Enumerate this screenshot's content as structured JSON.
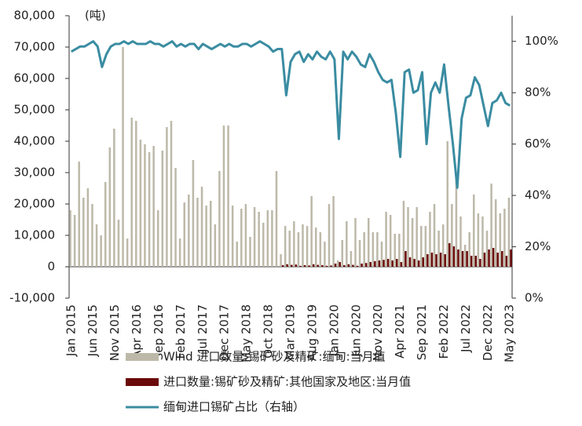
{
  "chart_data": {
    "type": "bar_line",
    "unit_label": "(吨)",
    "categories": [
      "Jan 2015",
      null,
      null,
      null,
      null,
      "Jun 2015",
      null,
      null,
      null,
      null,
      "Nov 2015",
      null,
      null,
      null,
      null,
      "Apr 2016",
      null,
      null,
      null,
      null,
      "Sep 2016",
      null,
      null,
      null,
      null,
      "Feb 2017",
      null,
      null,
      null,
      null,
      "Jul 2017",
      null,
      null,
      null,
      null,
      "Dec 2017",
      null,
      null,
      null,
      null,
      "May 2018",
      null,
      null,
      null,
      null,
      "Oct 2018",
      null,
      null,
      null,
      null,
      "Mar 2019",
      null,
      null,
      null,
      null,
      "Aug 2019",
      null,
      null,
      null,
      null,
      "Jan 2020",
      null,
      null,
      null,
      null,
      "Jun 2020",
      null,
      null,
      null,
      null,
      "Nov 2020",
      null,
      null,
      null,
      null,
      "Apr 2021",
      null,
      null,
      null,
      null,
      "Sep 2021",
      null,
      null,
      null,
      null,
      "Feb 2022",
      null,
      null,
      null,
      null,
      "Jul 2022",
      null,
      null,
      null,
      null,
      "Dec 2022",
      null,
      null,
      null,
      null,
      "May 2023"
    ],
    "series": [
      {
        "name": "Wind 进口数量:锡矿砂及精矿:缅甸:当月值",
        "color": "#bdb9a9",
        "kind": "bar",
        "values": [
          18000,
          16500,
          33500,
          22000,
          25000,
          20000,
          13500,
          10000,
          27000,
          38000,
          44000,
          15000,
          70000,
          9000,
          47500,
          46500,
          40500,
          39000,
          36500,
          38500,
          18000,
          37000,
          44500,
          46500,
          31500,
          9000,
          20500,
          23000,
          34000,
          22000,
          25500,
          19500,
          21000,
          13500,
          30500,
          45000,
          45000,
          19500,
          8000,
          18500,
          20000,
          9500,
          19000,
          17500,
          14000,
          18000,
          18000,
          30500,
          4000,
          13000,
          11500,
          14500,
          11000,
          13500,
          13000,
          22500,
          12500,
          11000,
          8000,
          20000,
          22500,
          2000,
          8500,
          14500,
          5000,
          15500,
          8500,
          11000,
          15500,
          11000,
          11000,
          8000,
          17500,
          16500,
          10500,
          10500,
          21000,
          19000,
          15500,
          19000,
          13000,
          13000,
          17500,
          20000,
          11500,
          13500,
          40000,
          20000,
          29000,
          16000,
          7000,
          11000,
          23000,
          17000,
          16000,
          11500,
          26500,
          21500,
          17000,
          18500,
          22000
        ]
      },
      {
        "name": "进口数量:锡矿砂及精矿:其他国家及地区:当月值",
        "color": "#6b0a0a",
        "kind": "bar",
        "values": [
          0,
          0,
          0,
          0,
          0,
          0,
          0,
          0,
          0,
          0,
          0,
          0,
          0,
          0,
          0,
          0,
          0,
          0,
          0,
          0,
          0,
          0,
          0,
          0,
          0,
          0,
          0,
          0,
          0,
          0,
          0,
          0,
          0,
          0,
          0,
          0,
          0,
          0,
          0,
          0,
          0,
          0,
          0,
          0,
          0,
          0,
          0,
          0,
          500,
          800,
          600,
          700,
          300,
          500,
          400,
          800,
          600,
          500,
          300,
          400,
          1000,
          1500,
          500,
          800,
          600,
          300,
          1000,
          1200,
          1500,
          1800,
          2000,
          2200,
          2500,
          2000,
          2500,
          1500,
          5000,
          3000,
          2500,
          2000,
          3000,
          4000,
          4500,
          4000,
          4500,
          4000,
          7500,
          6500,
          5500,
          5000,
          5000,
          3500,
          3500,
          2500,
          4500,
          5500,
          6000,
          4500,
          5000,
          3500,
          5500
        ]
      },
      {
        "name": "缅甸进口锡矿占比（右轴）",
        "color": "#3a8ca2",
        "kind": "line",
        "axis": "y2",
        "values": [
          96,
          97,
          98,
          98,
          99,
          100,
          98,
          90,
          95,
          98,
          99,
          99,
          100,
          99,
          100,
          99,
          99,
          99,
          100,
          99,
          99,
          98,
          99,
          100,
          98,
          99,
          98,
          99,
          99,
          97,
          99,
          98,
          97,
          98,
          99,
          98,
          99,
          98,
          98,
          99,
          99,
          98,
          99,
          100,
          99,
          98,
          96,
          97,
          97,
          79,
          92,
          95,
          96,
          92,
          95,
          93,
          96,
          94,
          93,
          96,
          93,
          62,
          96,
          93,
          96,
          94,
          91,
          90,
          95,
          92,
          88,
          85,
          84,
          85,
          72,
          55,
          88,
          89,
          80,
          81,
          88,
          60,
          80,
          84,
          80,
          91,
          75,
          60,
          43,
          70,
          78,
          79,
          86,
          83,
          75,
          67,
          76,
          77,
          80,
          76,
          75
        ]
      }
    ],
    "ylim": [
      -10000,
      80000
    ],
    "yticks": [
      {
        "value": -10000,
        "label": "-10,000"
      },
      0,
      {
        "value": 10000,
        "label": "10,000"
      },
      {
        "value": 20000,
        "label": "20,000"
      },
      {
        "value": 30000,
        "label": "30,000"
      },
      {
        "value": 40000,
        "label": "40,000"
      },
      {
        "value": 50000,
        "label": "50,000"
      },
      {
        "value": 60000,
        "label": "60,000"
      },
      {
        "value": 70000,
        "label": "70,000"
      },
      {
        "value": 80000,
        "label": "80,000"
      }
    ],
    "y2lim": [
      0,
      110
    ],
    "y2ticks": [
      {
        "value": 0,
        "label": "0%"
      },
      {
        "value": 20,
        "label": "20%"
      },
      {
        "value": 40,
        "label": "40%"
      },
      {
        "value": 60,
        "label": "60%"
      },
      {
        "value": 80,
        "label": "80%"
      },
      {
        "value": 100,
        "label": "100%"
      }
    ]
  }
}
